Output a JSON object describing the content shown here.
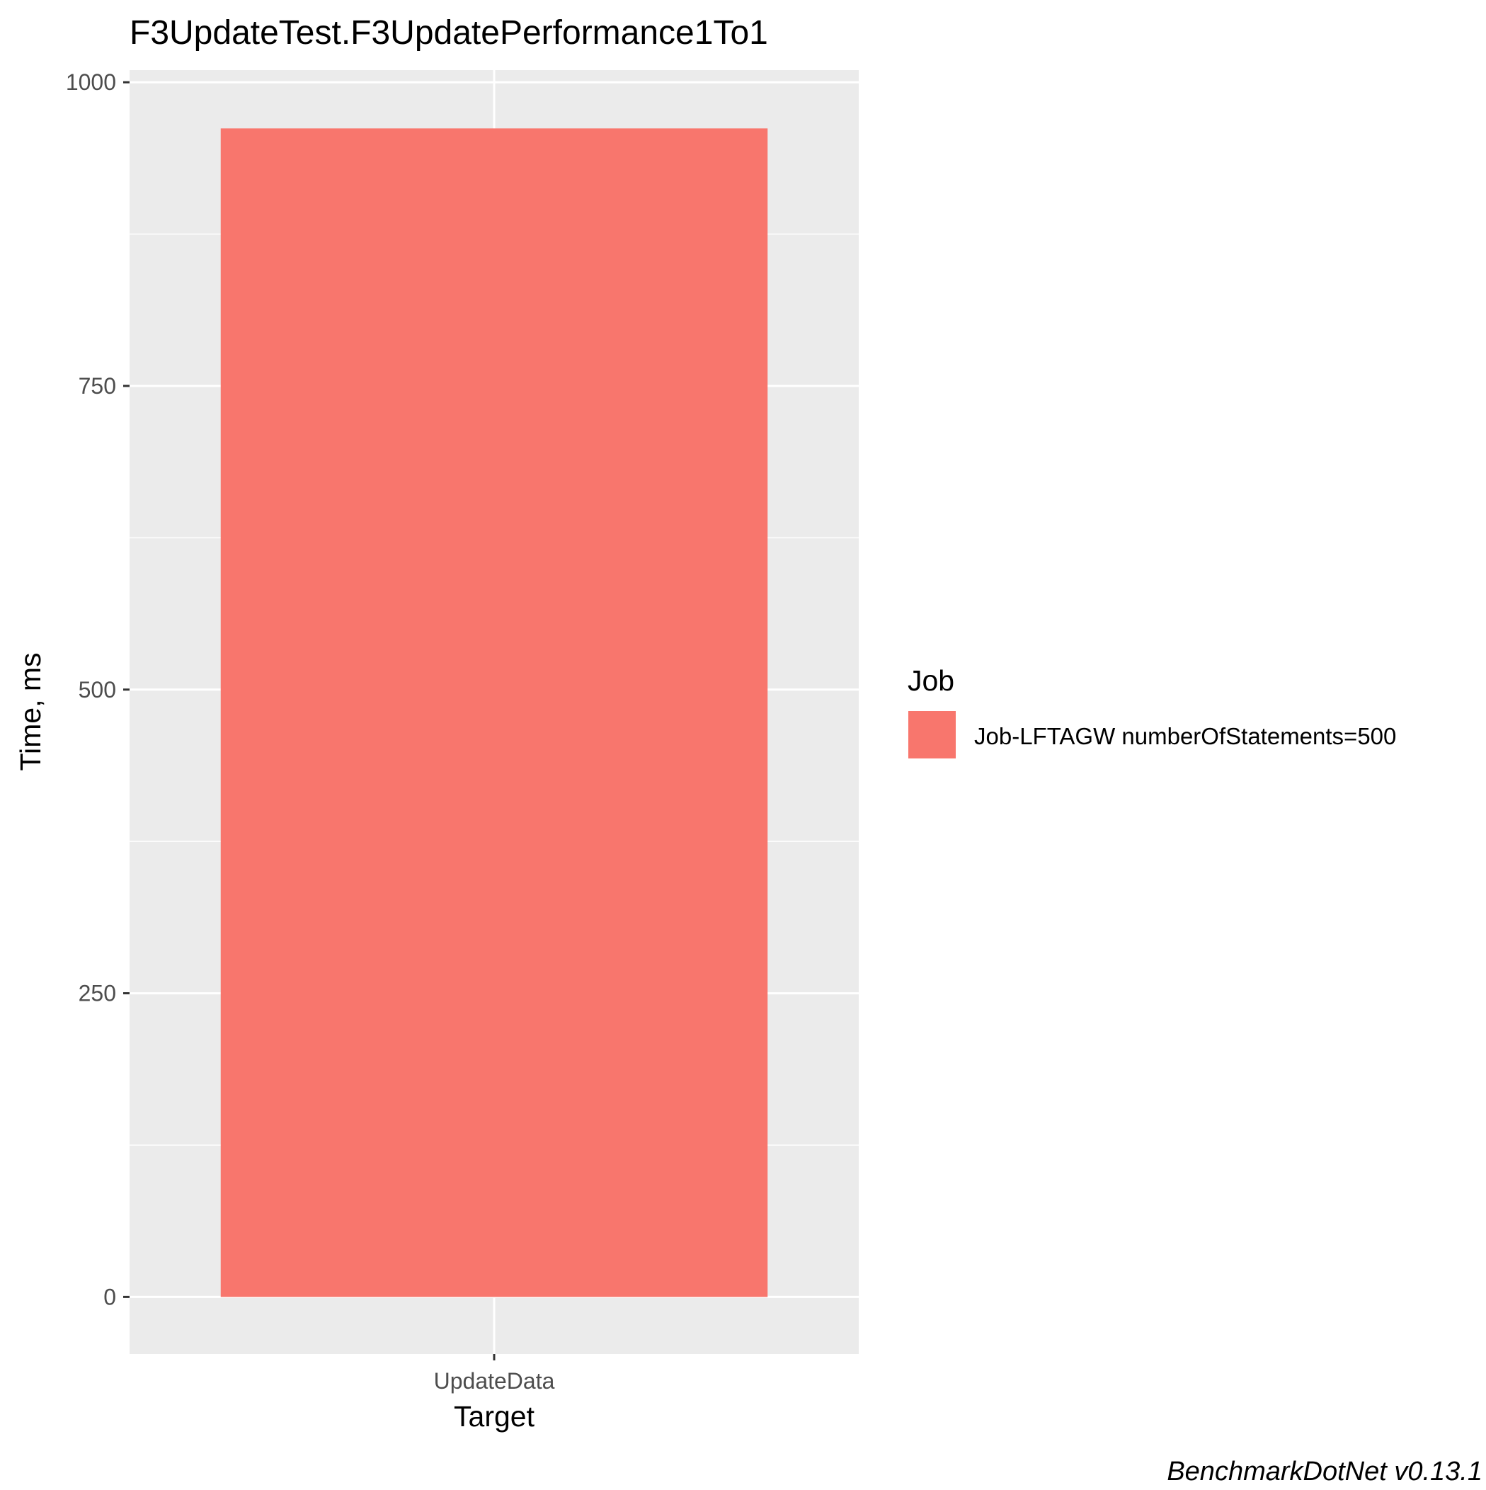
{
  "chart_data": {
    "type": "bar",
    "title": "F3UpdateTest.F3UpdatePerformance1To1",
    "xlabel": "Target",
    "ylabel": "Time, ms",
    "categories": [
      "UpdateData"
    ],
    "series": [
      {
        "name": "Job-LFTAGW numberOfStatements=500",
        "values": [
          962
        ],
        "color": "#F8766D"
      }
    ],
    "ylim": [
      -47,
      1010
    ],
    "yticks": [
      0,
      250,
      500,
      750,
      1000
    ],
    "grid": true,
    "legend": {
      "title": "Job",
      "placement": "right"
    },
    "panel_background": "#EBEBEB",
    "caption": "BenchmarkDotNet v0.13.1"
  }
}
